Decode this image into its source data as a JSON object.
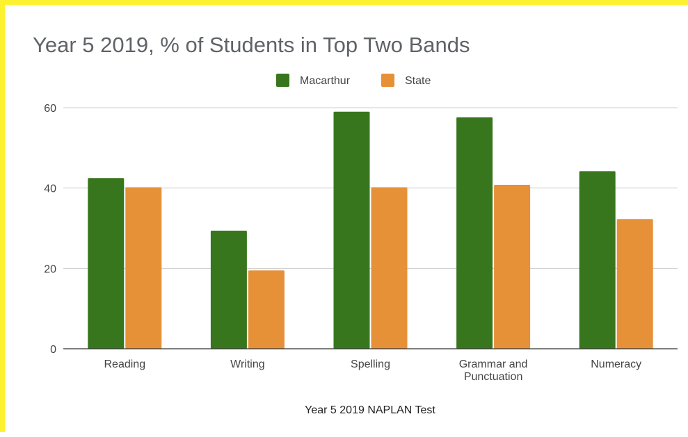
{
  "chart_data": {
    "type": "bar",
    "title": "Year 5 2019, % of Students in Top Two Bands",
    "xlabel": "Year 5 2019 NAPLAN Test",
    "ylabel": "",
    "categories": [
      "Reading",
      "Writing",
      "Spelling",
      "Grammar and Punctuation",
      "Numeracy"
    ],
    "category_lines": [
      [
        "Reading"
      ],
      [
        "Writing"
      ],
      [
        "Spelling"
      ],
      [
        "Grammar and",
        "Punctuation"
      ],
      [
        "Numeracy"
      ]
    ],
    "series": [
      {
        "name": "Macarthur",
        "color": "#38761d",
        "values": [
          42.5,
          29.4,
          59.0,
          57.6,
          44.2
        ]
      },
      {
        "name": "State",
        "color": "#e69138",
        "values": [
          40.2,
          19.5,
          40.2,
          40.8,
          32.3
        ]
      }
    ],
    "ylim": [
      0,
      60
    ],
    "yticks": [
      0,
      20,
      40,
      60
    ],
    "grid": true,
    "legend_position": "top-center"
  }
}
